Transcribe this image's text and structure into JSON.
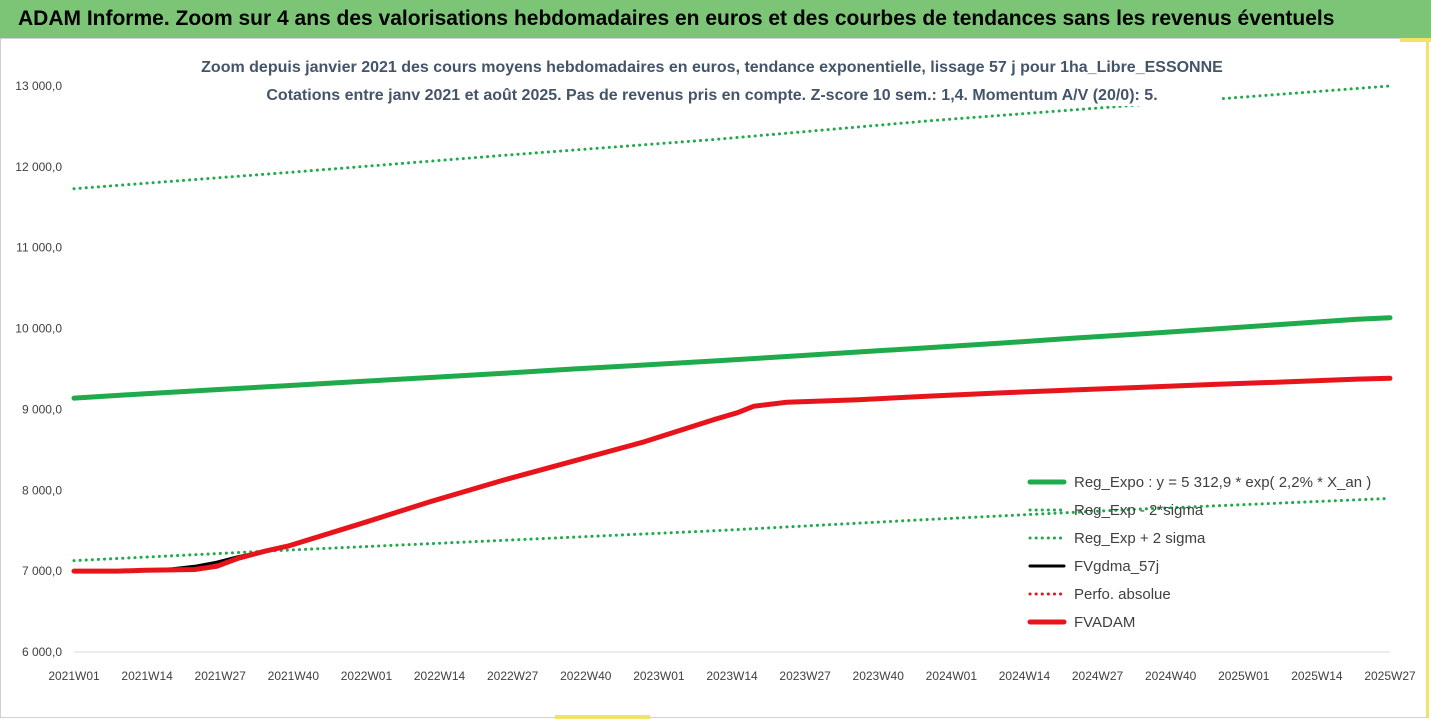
{
  "banner": {
    "title": "ADAM Informe. Zoom sur 4 ans des valorisations hebdomadaires en euros et des courbes de tendances sans les revenus éventuels"
  },
  "chart_data": {
    "type": "line",
    "title": "Zoom depuis janvier 2021 des cours moyens hebdomadaires en euros, tendance exponentielle, lissage 57 j pour 1ha_Libre_ESSONNE",
    "subtitle": "Cotations entre janv 2021 et août 2025.  Pas de revenus pris en compte. Z-score 10 sem.: 1,4. Momentum A/V (20/0): 5.",
    "x_tick_labels": [
      "2021W01",
      "2021W14",
      "2021W27",
      "2021W40",
      "2022W01",
      "2022W14",
      "2022W27",
      "2022W40",
      "2023W01",
      "2023W14",
      "2023W27",
      "2023W40",
      "2024W01",
      "2024W14",
      "2024W27",
      "2024W40",
      "2025W01",
      "2025W14",
      "2025W27"
    ],
    "y_tick_labels": [
      "6 000,0",
      "7 000,0",
      "8 000,0",
      "9 000,0",
      "10 000,0",
      "11 000,0",
      "12 000,0",
      "13 000,0"
    ],
    "ylim": [
      6000,
      13000
    ],
    "grid": false,
    "legend_position": "right",
    "series": [
      {
        "name": "Reg_Expo : y = 5 312,9 * exp( 2,2% *  X_an )",
        "color": "#1faa4b",
        "style": "solid",
        "width": 5,
        "x": [
          0,
          13,
          26,
          39,
          52,
          65,
          78,
          91,
          104,
          117,
          130,
          143,
          156,
          169,
          182,
          195,
          208,
          221,
          234,
          240
        ],
        "y": [
          9140,
          9195,
          9245,
          9295,
          9345,
          9395,
          9445,
          9500,
          9550,
          9600,
          9655,
          9710,
          9765,
          9820,
          9880,
          9935,
          9995,
          10055,
          10115,
          10135
        ]
      },
      {
        "name": "Reg_Exp - 2*sigma",
        "color": "#1faa4b",
        "style": "dotted",
        "width": 3,
        "x": [
          0,
          39,
          78,
          117,
          156,
          195,
          240
        ],
        "y": [
          7130,
          7260,
          7380,
          7500,
          7640,
          7770,
          7900
        ]
      },
      {
        "name": "Reg_Exp + 2 sigma",
        "color": "#1faa4b",
        "style": "dotted",
        "width": 3,
        "x": [
          0,
          39,
          78,
          117,
          156,
          195,
          240
        ],
        "y": [
          11730,
          11930,
          12140,
          12340,
          12570,
          12770,
          13000
        ]
      },
      {
        "name": "FVgdma_57j",
        "color": "#000000",
        "style": "solid",
        "width": 3,
        "x": [
          0,
          8,
          13,
          18,
          22,
          26,
          30,
          35,
          39,
          52,
          65,
          78,
          91,
          104,
          117,
          121,
          124,
          130,
          143,
          156,
          169,
          182,
          195,
          208,
          221,
          234,
          240
        ],
        "y": [
          7000,
          7000,
          7010,
          7030,
          7060,
          7110,
          7180,
          7250,
          7310,
          7580,
          7860,
          8120,
          8360,
          8600,
          8880,
          8960,
          9030,
          9080,
          9120,
          9165,
          9205,
          9240,
          9275,
          9310,
          9340,
          9375,
          9385
        ]
      },
      {
        "name": "Perfo. absolue",
        "color": "#e8141b",
        "style": "dotted",
        "width": 3,
        "x": [
          0,
          8,
          13,
          18,
          22,
          26,
          30,
          35,
          39,
          52,
          65,
          78,
          91,
          104,
          117,
          121,
          124,
          130,
          143,
          156,
          169,
          182,
          195,
          208,
          221,
          234,
          240
        ],
        "y": [
          7000,
          7000,
          7010,
          7015,
          7020,
          7060,
          7160,
          7250,
          7310,
          7580,
          7860,
          8120,
          8360,
          8600,
          8880,
          8960,
          9040,
          9090,
          9120,
          9165,
          9205,
          9240,
          9275,
          9310,
          9340,
          9375,
          9385
        ]
      },
      {
        "name": "FVADAM",
        "color": "#e8141b",
        "style": "solid",
        "width": 5,
        "x": [
          0,
          8,
          13,
          18,
          22,
          26,
          30,
          35,
          39,
          52,
          65,
          78,
          91,
          104,
          117,
          121,
          124,
          130,
          143,
          156,
          169,
          182,
          195,
          208,
          221,
          234,
          240
        ],
        "y": [
          7000,
          7000,
          7010,
          7015,
          7020,
          7060,
          7160,
          7250,
          7310,
          7580,
          7860,
          8120,
          8360,
          8600,
          8880,
          8960,
          9040,
          9090,
          9120,
          9165,
          9205,
          9240,
          9275,
          9310,
          9340,
          9375,
          9385
        ]
      }
    ]
  }
}
